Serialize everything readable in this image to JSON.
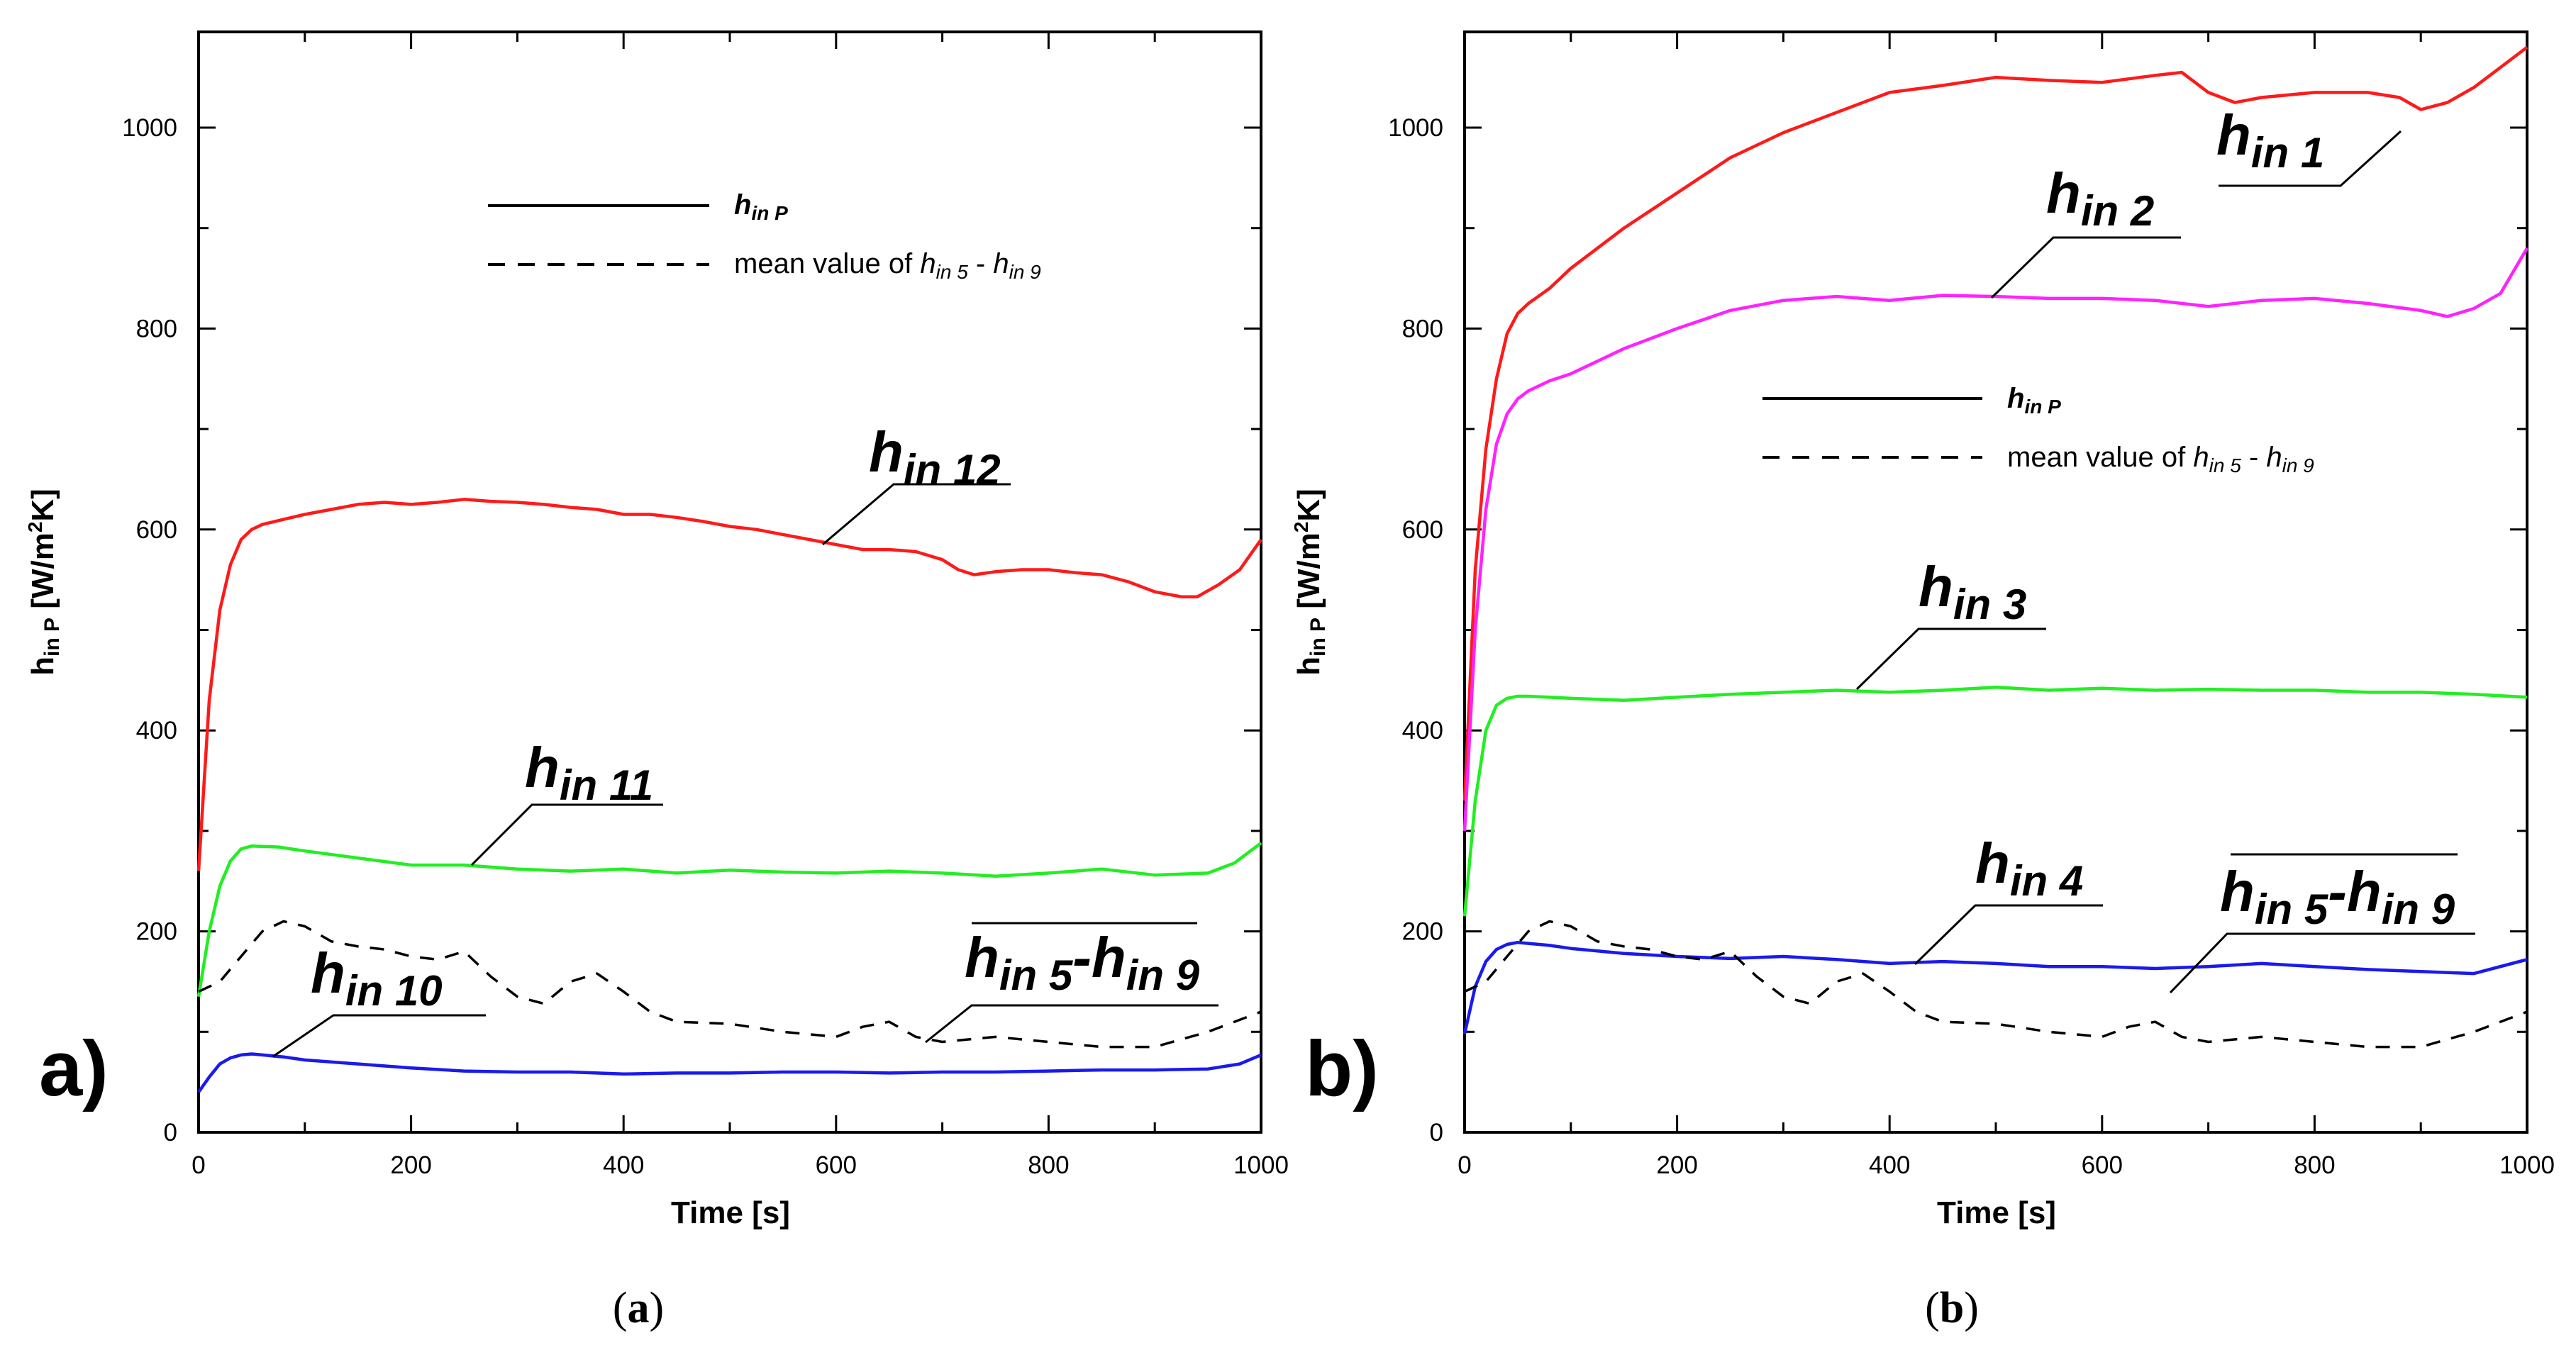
{
  "figure_labels": {
    "a_panel": "a)",
    "b_panel": "b)",
    "a_caption": [
      "(",
      "a",
      ")"
    ],
    "b_caption": [
      "(",
      "b",
      ")"
    ]
  },
  "colors": {
    "red": "#ff1a1a",
    "magenta": "#ff22ff",
    "green": "#22ee22",
    "blue": "#1a1aee",
    "dashed": "#000000"
  },
  "chart_data": [
    {
      "type": "line",
      "xlabel": "Time [s]",
      "ylabel": "h_in P [W/m²K]",
      "ylabel_parts": {
        "h": "h",
        "sub": "in P",
        "rest": " [W/m",
        "sup": "2",
        "end": "K]"
      },
      "xlim": [
        0,
        1000
      ],
      "ylim": [
        0,
        1100
      ],
      "x_ticks": [
        "0",
        "200",
        "400",
        "600",
        "800",
        "1000"
      ],
      "y_ticks": [
        "0",
        "200",
        "400",
        "600",
        "800",
        "1000"
      ],
      "legend": {
        "solid": {
          "h": "h",
          "sub": "in P"
        },
        "dashed": {
          "prefix": "mean value of ",
          "h1": "h",
          "sub1": "in 5",
          "mid": " - ",
          "h2": "h",
          "sub2": "in 9"
        }
      },
      "series": [
        {
          "name": "h in 12",
          "color": "red",
          "dashed": false,
          "x": [
            0,
            10,
            20,
            30,
            40,
            50,
            60,
            80,
            100,
            125,
            150,
            175,
            200,
            225,
            250,
            275,
            300,
            325,
            350,
            375,
            400,
            425,
            450,
            475,
            500,
            525,
            550,
            575,
            600,
            625,
            650,
            675,
            700,
            715,
            730,
            750,
            775,
            800,
            825,
            850,
            875,
            900,
            925,
            940,
            960,
            980,
            1000
          ],
          "y": [
            260,
            430,
            520,
            565,
            590,
            600,
            605,
            610,
            615,
            620,
            625,
            627,
            625,
            627,
            630,
            628,
            627,
            625,
            622,
            620,
            615,
            615,
            612,
            608,
            603,
            600,
            595,
            590,
            585,
            580,
            580,
            578,
            570,
            560,
            555,
            558,
            560,
            560,
            557,
            555,
            548,
            538,
            533,
            533,
            545,
            560,
            590
          ]
        },
        {
          "name": "h in 11",
          "color": "green",
          "dashed": false,
          "x": [
            0,
            10,
            20,
            30,
            40,
            50,
            75,
            100,
            150,
            200,
            250,
            300,
            350,
            400,
            450,
            500,
            550,
            600,
            650,
            700,
            750,
            800,
            850,
            900,
            950,
            975,
            1000
          ],
          "y": [
            135,
            200,
            245,
            270,
            282,
            285,
            284,
            280,
            273,
            266,
            266,
            262,
            260,
            262,
            258,
            261,
            259,
            258,
            260,
            258,
            255,
            258,
            262,
            256,
            258,
            268,
            288
          ]
        },
        {
          "name": "h in 10",
          "color": "blue",
          "dashed": false,
          "x": [
            0,
            10,
            20,
            30,
            40,
            50,
            60,
            80,
            100,
            150,
            200,
            250,
            300,
            350,
            400,
            450,
            500,
            550,
            600,
            650,
            700,
            750,
            800,
            850,
            900,
            950,
            980,
            1000
          ],
          "y": [
            40,
            55,
            68,
            74,
            77,
            78,
            77,
            75,
            72,
            68,
            64,
            61,
            60,
            60,
            58,
            59,
            59,
            60,
            60,
            59,
            60,
            60,
            61,
            62,
            62,
            63,
            68,
            77
          ]
        },
        {
          "name": "h in 5 - h in 9",
          "color": "dashed",
          "dashed": true,
          "x": [
            0,
            20,
            40,
            60,
            80,
            100,
            125,
            150,
            175,
            200,
            225,
            250,
            275,
            300,
            325,
            350,
            375,
            400,
            425,
            450,
            500,
            550,
            600,
            625,
            650,
            675,
            700,
            750,
            800,
            850,
            900,
            950,
            1000
          ],
          "y": [
            140,
            150,
            175,
            200,
            210,
            205,
            190,
            185,
            182,
            175,
            172,
            180,
            155,
            135,
            128,
            150,
            158,
            140,
            120,
            110,
            108,
            100,
            95,
            105,
            110,
            95,
            90,
            95,
            90,
            85,
            85,
            100,
            120
          ]
        }
      ],
      "annotations": [
        {
          "h": "h",
          "sub": "in 12",
          "overline": false
        },
        {
          "h": "h",
          "sub": "in 11",
          "overline": false
        },
        {
          "h": "h",
          "sub": "in 10",
          "overline": false
        },
        {
          "h1": "h",
          "sub1": "in 5",
          "mid": "-",
          "h2": "h",
          "sub2": "in 9",
          "overline": true
        }
      ]
    },
    {
      "type": "line",
      "xlabel": "Time [s]",
      "ylabel": "h_in P [W/m²K]",
      "ylabel_parts": {
        "h": "h",
        "sub": "in P",
        "rest": " [W/m",
        "sup": "2",
        "end": "K]"
      },
      "xlim": [
        0,
        1000
      ],
      "ylim": [
        0,
        1100
      ],
      "x_ticks": [
        "0",
        "200",
        "400",
        "600",
        "800",
        "1000"
      ],
      "y_ticks": [
        "0",
        "200",
        "400",
        "600",
        "800",
        "1000"
      ],
      "legend": {
        "solid": {
          "h": "h",
          "sub": "in P"
        },
        "dashed": {
          "prefix": "mean value of ",
          "h1": "h",
          "sub1": "in 5",
          "mid": " - ",
          "h2": "h",
          "sub2": "in 9"
        }
      },
      "series": [
        {
          "name": "h in 1",
          "color": "red",
          "dashed": false,
          "x": [
            0,
            10,
            20,
            30,
            40,
            50,
            60,
            80,
            100,
            150,
            200,
            250,
            300,
            350,
            400,
            450,
            500,
            550,
            600,
            650,
            675,
            700,
            725,
            750,
            800,
            850,
            880,
            900,
            925,
            950,
            975,
            1000
          ],
          "y": [
            330,
            560,
            680,
            750,
            795,
            815,
            825,
            840,
            860,
            900,
            935,
            970,
            995,
            1015,
            1035,
            1042,
            1050,
            1047,
            1045,
            1052,
            1055,
            1035,
            1025,
            1030,
            1035,
            1035,
            1030,
            1018,
            1025,
            1040,
            1060,
            1080
          ]
        },
        {
          "name": "h in 2",
          "color": "magenta",
          "dashed": false,
          "x": [
            0,
            10,
            20,
            30,
            40,
            50,
            60,
            80,
            100,
            150,
            200,
            250,
            300,
            350,
            400,
            450,
            500,
            550,
            600,
            650,
            700,
            750,
            800,
            850,
            900,
            925,
            950,
            975,
            1000
          ],
          "y": [
            300,
            500,
            620,
            685,
            715,
            730,
            738,
            748,
            755,
            780,
            800,
            818,
            828,
            832,
            828,
            833,
            832,
            830,
            830,
            828,
            822,
            828,
            830,
            825,
            818,
            812,
            820,
            835,
            880
          ]
        },
        {
          "name": "h in 3",
          "color": "green",
          "dashed": false,
          "x": [
            0,
            10,
            20,
            30,
            40,
            50,
            60,
            80,
            100,
            150,
            200,
            250,
            300,
            350,
            400,
            450,
            500,
            550,
            600,
            650,
            700,
            750,
            800,
            850,
            900,
            950,
            1000
          ],
          "y": [
            215,
            330,
            400,
            425,
            432,
            434,
            434,
            433,
            432,
            430,
            433,
            436,
            438,
            440,
            438,
            440,
            443,
            440,
            442,
            440,
            441,
            440,
            440,
            438,
            438,
            436,
            433
          ]
        },
        {
          "name": "h in 4",
          "color": "blue",
          "dashed": false,
          "x": [
            0,
            10,
            20,
            30,
            40,
            50,
            60,
            80,
            100,
            150,
            200,
            250,
            300,
            350,
            400,
            450,
            500,
            550,
            600,
            650,
            700,
            750,
            800,
            850,
            900,
            950,
            1000
          ],
          "y": [
            98,
            145,
            170,
            182,
            187,
            189,
            188,
            186,
            183,
            178,
            175,
            173,
            175,
            172,
            168,
            170,
            168,
            165,
            165,
            163,
            165,
            168,
            165,
            162,
            160,
            158,
            172
          ]
        },
        {
          "name": "h in 5 - h in 9",
          "color": "dashed",
          "dashed": true,
          "x": [
            0,
            20,
            40,
            60,
            80,
            100,
            125,
            150,
            175,
            200,
            225,
            250,
            275,
            300,
            325,
            350,
            375,
            400,
            425,
            450,
            500,
            550,
            600,
            625,
            650,
            675,
            700,
            750,
            800,
            850,
            900,
            950,
            1000
          ],
          "y": [
            140,
            150,
            175,
            200,
            210,
            205,
            190,
            185,
            182,
            175,
            172,
            180,
            155,
            135,
            128,
            150,
            158,
            140,
            120,
            110,
            108,
            100,
            95,
            105,
            110,
            95,
            90,
            95,
            90,
            85,
            85,
            100,
            120
          ]
        }
      ],
      "annotations": [
        {
          "h": "h",
          "sub": "in 1",
          "overline": false
        },
        {
          "h": "h",
          "sub": "in 2",
          "overline": false
        },
        {
          "h": "h",
          "sub": "in 3",
          "overline": false
        },
        {
          "h": "h",
          "sub": "in 4",
          "overline": false
        },
        {
          "h1": "h",
          "sub1": "in 5",
          "mid": "-",
          "h2": "h",
          "sub2": "in 9",
          "overline": true
        }
      ]
    }
  ]
}
